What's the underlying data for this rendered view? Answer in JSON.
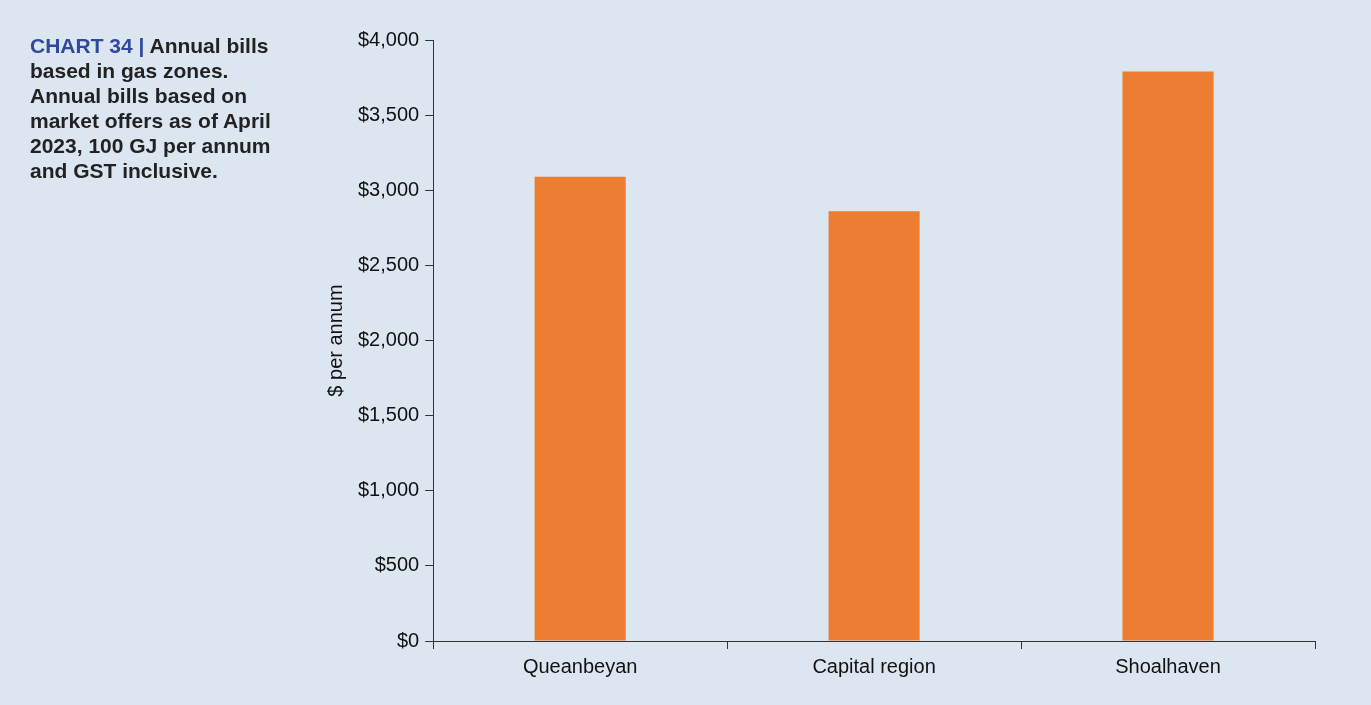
{
  "chart_data": {
    "type": "bar",
    "title": "CHART 34 | Annual bills based in gas zones. Annual bills based on market offers as of April 2023, 100 GJ per annum and GST inclusive.",
    "ylabel": "$ per annum",
    "categories": [
      "Queanbeyan",
      "Capital region",
      "Shoalhaven"
    ],
    "values": [
      3090,
      2860,
      3790
    ],
    "color": "#ed7d31",
    "ylim": [
      0,
      4000
    ],
    "yticks": [
      {
        "value": 0,
        "label": "$0"
      },
      {
        "value": 500,
        "label": "$500"
      },
      {
        "value": 1000,
        "label": "$1,000"
      },
      {
        "value": 1500,
        "label": "$1,500"
      },
      {
        "value": 2000,
        "label": "$2,000"
      },
      {
        "value": 2500,
        "label": "$2,500"
      },
      {
        "value": 3000,
        "label": "$3,000"
      },
      {
        "value": 3500,
        "label": "$3,500"
      },
      {
        "value": 4000,
        "label": "$4,000"
      }
    ],
    "grid": false,
    "legend": false
  }
}
